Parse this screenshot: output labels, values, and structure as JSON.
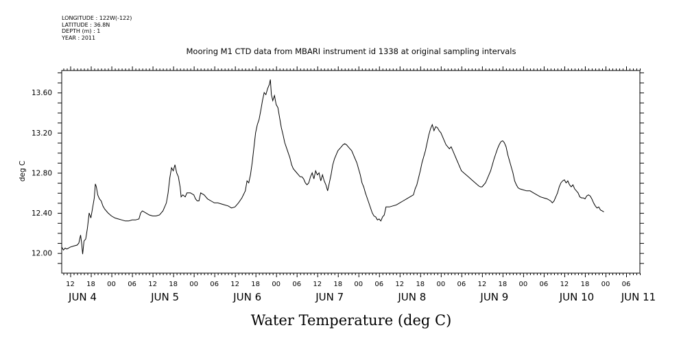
{
  "header": {
    "meta_lines": [
      "LONGITUDE : 122W(-122)",
      "LATITUDE : 36.8N",
      "DEPTH (m) : 1",
      "YEAR : 2011"
    ]
  },
  "chart_data": {
    "type": "line",
    "title": "Mooring M1 CTD data from MBARI instrument id 1338 at original sampling intervals",
    "xlabel": "Water Temperature (deg C)",
    "ylabel": "deg C",
    "ylim": [
      11.8,
      13.82
    ],
    "xlim_hours": [
      9.5,
      178
    ],
    "x_unit": "hours since 00:00 on JUN 4, 2011",
    "yticks": [
      12.0,
      12.4,
      12.8,
      13.2,
      13.6
    ],
    "ytick_labels": [
      "12.00",
      "12.40",
      "12.80",
      "13.20",
      "13.60"
    ],
    "hour_ticks": [
      {
        "h": 12,
        "label": "12"
      },
      {
        "h": 18,
        "label": "18"
      },
      {
        "h": 24,
        "label": "00"
      },
      {
        "h": 30,
        "label": "06"
      },
      {
        "h": 36,
        "label": "12"
      },
      {
        "h": 42,
        "label": "18"
      },
      {
        "h": 48,
        "label": "00"
      },
      {
        "h": 54,
        "label": "06"
      },
      {
        "h": 60,
        "label": "12"
      },
      {
        "h": 66,
        "label": "18"
      },
      {
        "h": 72,
        "label": "00"
      },
      {
        "h": 78,
        "label": "06"
      },
      {
        "h": 84,
        "label": "12"
      },
      {
        "h": 90,
        "label": "18"
      },
      {
        "h": 96,
        "label": "00"
      },
      {
        "h": 102,
        "label": "06"
      },
      {
        "h": 108,
        "label": "12"
      },
      {
        "h": 114,
        "label": "18"
      },
      {
        "h": 120,
        "label": "00"
      },
      {
        "h": 126,
        "label": "06"
      },
      {
        "h": 132,
        "label": "12"
      },
      {
        "h": 138,
        "label": "18"
      },
      {
        "h": 144,
        "label": "00"
      },
      {
        "h": 150,
        "label": "06"
      },
      {
        "h": 156,
        "label": "12"
      },
      {
        "h": 162,
        "label": "18"
      },
      {
        "h": 168,
        "label": "00"
      },
      {
        "h": 174,
        "label": "06"
      }
    ],
    "day_labels": [
      {
        "h": 12,
        "label": "JUN  4"
      },
      {
        "h": 36,
        "label": "JUN  5"
      },
      {
        "h": 60,
        "label": "JUN  6"
      },
      {
        "h": 84,
        "label": "JUN  7"
      },
      {
        "h": 108,
        "label": "JUN  8"
      },
      {
        "h": 132,
        "label": "JUN  9"
      },
      {
        "h": 156,
        "label": "JUN 10"
      },
      {
        "h": 174,
        "label": "JUN 11"
      }
    ],
    "grid": false,
    "series": [
      {
        "color": "#000000",
        "points": [
          [
            9.5,
            12.06
          ],
          [
            10.0,
            12.03
          ],
          [
            10.5,
            12.05
          ],
          [
            11.0,
            12.04
          ],
          [
            12.0,
            12.06
          ],
          [
            13.0,
            12.07
          ],
          [
            14.0,
            12.08
          ],
          [
            14.5,
            12.1
          ],
          [
            15.0,
            12.18
          ],
          [
            15.3,
            12.1
          ],
          [
            15.6,
            11.99
          ],
          [
            16.0,
            12.12
          ],
          [
            16.5,
            12.14
          ],
          [
            17.0,
            12.25
          ],
          [
            17.5,
            12.4
          ],
          [
            18.0,
            12.35
          ],
          [
            18.5,
            12.45
          ],
          [
            19.0,
            12.55
          ],
          [
            19.3,
            12.69
          ],
          [
            19.6,
            12.66
          ],
          [
            20.0,
            12.58
          ],
          [
            20.5,
            12.54
          ],
          [
            21.0,
            12.52
          ],
          [
            21.5,
            12.47
          ],
          [
            22.0,
            12.44
          ],
          [
            23.0,
            12.4
          ],
          [
            24.0,
            12.37
          ],
          [
            25.0,
            12.35
          ],
          [
            26.0,
            12.34
          ],
          [
            27.0,
            12.33
          ],
          [
            28.0,
            12.32
          ],
          [
            29.0,
            12.32
          ],
          [
            30.0,
            12.33
          ],
          [
            31.0,
            12.33
          ],
          [
            32.0,
            12.34
          ],
          [
            32.5,
            12.4
          ],
          [
            33.0,
            12.42
          ],
          [
            34.0,
            12.4
          ],
          [
            35.0,
            12.38
          ],
          [
            36.0,
            12.37
          ],
          [
            37.0,
            12.37
          ],
          [
            38.0,
            12.38
          ],
          [
            39.0,
            12.42
          ],
          [
            40.0,
            12.5
          ],
          [
            40.5,
            12.6
          ],
          [
            41.0,
            12.75
          ],
          [
            41.5,
            12.85
          ],
          [
            42.0,
            12.82
          ],
          [
            42.5,
            12.88
          ],
          [
            43.0,
            12.8
          ],
          [
            43.5,
            12.76
          ],
          [
            44.0,
            12.66
          ],
          [
            44.3,
            12.56
          ],
          [
            44.8,
            12.58
          ],
          [
            45.5,
            12.56
          ],
          [
            46.0,
            12.6
          ],
          [
            47.0,
            12.6
          ],
          [
            48.0,
            12.58
          ],
          [
            48.5,
            12.54
          ],
          [
            49.0,
            12.52
          ],
          [
            49.5,
            12.52
          ],
          [
            50.0,
            12.6
          ],
          [
            51.0,
            12.58
          ],
          [
            52.0,
            12.54
          ],
          [
            53.0,
            12.52
          ],
          [
            54.0,
            12.5
          ],
          [
            55.0,
            12.5
          ],
          [
            56.0,
            12.49
          ],
          [
            57.0,
            12.48
          ],
          [
            58.0,
            12.47
          ],
          [
            59.0,
            12.45
          ],
          [
            60.0,
            12.46
          ],
          [
            61.0,
            12.5
          ],
          [
            62.0,
            12.55
          ],
          [
            63.0,
            12.62
          ],
          [
            63.5,
            12.72
          ],
          [
            64.0,
            12.7
          ],
          [
            64.5,
            12.78
          ],
          [
            65.0,
            12.9
          ],
          [
            65.5,
            13.05
          ],
          [
            66.0,
            13.2
          ],
          [
            66.5,
            13.28
          ],
          [
            67.0,
            13.33
          ],
          [
            67.5,
            13.42
          ],
          [
            68.0,
            13.52
          ],
          [
            68.5,
            13.6
          ],
          [
            69.0,
            13.58
          ],
          [
            69.5,
            13.64
          ],
          [
            70.0,
            13.68
          ],
          [
            70.3,
            13.73
          ],
          [
            70.6,
            13.58
          ],
          [
            71.0,
            13.52
          ],
          [
            71.5,
            13.57
          ],
          [
            72.0,
            13.48
          ],
          [
            72.5,
            13.45
          ],
          [
            73.0,
            13.35
          ],
          [
            73.5,
            13.25
          ],
          [
            74.0,
            13.18
          ],
          [
            74.5,
            13.1
          ],
          [
            75.0,
            13.05
          ],
          [
            75.5,
            13.0
          ],
          [
            76.0,
            12.95
          ],
          [
            76.5,
            12.88
          ],
          [
            77.0,
            12.84
          ],
          [
            77.5,
            12.82
          ],
          [
            78.0,
            12.8
          ],
          [
            78.5,
            12.78
          ],
          [
            79.0,
            12.76
          ],
          [
            79.5,
            12.76
          ],
          [
            80.0,
            12.74
          ],
          [
            80.5,
            12.7
          ],
          [
            81.0,
            12.68
          ],
          [
            81.5,
            12.7
          ],
          [
            82.0,
            12.76
          ],
          [
            82.5,
            12.8
          ],
          [
            83.0,
            12.74
          ],
          [
            83.5,
            12.82
          ],
          [
            84.0,
            12.78
          ],
          [
            84.5,
            12.8
          ],
          [
            85.0,
            12.72
          ],
          [
            85.5,
            12.78
          ],
          [
            86.0,
            12.72
          ],
          [
            86.5,
            12.68
          ],
          [
            87.0,
            12.62
          ],
          [
            87.5,
            12.7
          ],
          [
            88.0,
            12.78
          ],
          [
            88.5,
            12.88
          ],
          [
            89.0,
            12.94
          ],
          [
            89.5,
            12.98
          ],
          [
            90.0,
            13.02
          ],
          [
            90.5,
            13.04
          ],
          [
            91.0,
            13.06
          ],
          [
            91.5,
            13.08
          ],
          [
            92.0,
            13.09
          ],
          [
            92.5,
            13.08
          ],
          [
            93.0,
            13.06
          ],
          [
            93.5,
            13.04
          ],
          [
            94.0,
            13.02
          ],
          [
            94.5,
            12.98
          ],
          [
            95.0,
            12.94
          ],
          [
            95.5,
            12.9
          ],
          [
            96.0,
            12.84
          ],
          [
            96.5,
            12.78
          ],
          [
            97.0,
            12.7
          ],
          [
            97.5,
            12.66
          ],
          [
            98.0,
            12.6
          ],
          [
            98.5,
            12.55
          ],
          [
            99.0,
            12.5
          ],
          [
            99.5,
            12.45
          ],
          [
            100.0,
            12.4
          ],
          [
            100.5,
            12.37
          ],
          [
            101.0,
            12.36
          ],
          [
            101.5,
            12.33
          ],
          [
            102.0,
            12.34
          ],
          [
            102.5,
            12.32
          ],
          [
            103.0,
            12.36
          ],
          [
            103.5,
            12.38
          ],
          [
            104.0,
            12.46
          ],
          [
            105.0,
            12.46
          ],
          [
            106.0,
            12.47
          ],
          [
            107.0,
            12.48
          ],
          [
            108.0,
            12.5
          ],
          [
            109.0,
            12.52
          ],
          [
            110.0,
            12.54
          ],
          [
            111.0,
            12.56
          ],
          [
            112.0,
            12.58
          ],
          [
            112.5,
            12.64
          ],
          [
            113.0,
            12.68
          ],
          [
            113.5,
            12.75
          ],
          [
            114.0,
            12.82
          ],
          [
            114.5,
            12.9
          ],
          [
            115.0,
            12.96
          ],
          [
            115.5,
            13.02
          ],
          [
            116.0,
            13.1
          ],
          [
            116.5,
            13.18
          ],
          [
            117.0,
            13.24
          ],
          [
            117.5,
            13.28
          ],
          [
            118.0,
            13.22
          ],
          [
            118.5,
            13.26
          ],
          [
            119.0,
            13.25
          ],
          [
            119.5,
            13.22
          ],
          [
            120.0,
            13.2
          ],
          [
            120.5,
            13.16
          ],
          [
            121.0,
            13.12
          ],
          [
            121.5,
            13.08
          ],
          [
            122.0,
            13.06
          ],
          [
            122.5,
            13.04
          ],
          [
            123.0,
            13.06
          ],
          [
            123.5,
            13.02
          ],
          [
            124.0,
            12.98
          ],
          [
            124.5,
            12.94
          ],
          [
            125.0,
            12.9
          ],
          [
            125.5,
            12.86
          ],
          [
            126.0,
            12.82
          ],
          [
            127.0,
            12.79
          ],
          [
            128.0,
            12.76
          ],
          [
            129.0,
            12.73
          ],
          [
            130.0,
            12.7
          ],
          [
            131.0,
            12.67
          ],
          [
            131.5,
            12.66
          ],
          [
            132.0,
            12.66
          ],
          [
            132.5,
            12.68
          ],
          [
            133.0,
            12.7
          ],
          [
            133.5,
            12.74
          ],
          [
            134.0,
            12.78
          ],
          [
            134.5,
            12.82
          ],
          [
            135.0,
            12.88
          ],
          [
            135.5,
            12.94
          ],
          [
            136.0,
            12.99
          ],
          [
            136.5,
            13.04
          ],
          [
            137.0,
            13.08
          ],
          [
            137.5,
            13.11
          ],
          [
            138.0,
            13.12
          ],
          [
            138.5,
            13.1
          ],
          [
            139.0,
            13.06
          ],
          [
            139.5,
            12.98
          ],
          [
            140.0,
            12.92
          ],
          [
            140.5,
            12.86
          ],
          [
            141.0,
            12.8
          ],
          [
            141.5,
            12.72
          ],
          [
            142.0,
            12.68
          ],
          [
            142.5,
            12.65
          ],
          [
            143.0,
            12.64
          ],
          [
            144.0,
            12.63
          ],
          [
            145.0,
            12.62
          ],
          [
            146.0,
            12.62
          ],
          [
            147.0,
            12.6
          ],
          [
            148.0,
            12.58
          ],
          [
            149.0,
            12.56
          ],
          [
            150.0,
            12.55
          ],
          [
            151.0,
            12.54
          ],
          [
            152.0,
            12.52
          ],
          [
            152.5,
            12.5
          ],
          [
            153.0,
            12.52
          ],
          [
            153.5,
            12.56
          ],
          [
            154.0,
            12.6
          ],
          [
            154.5,
            12.66
          ],
          [
            155.0,
            12.7
          ],
          [
            155.5,
            12.72
          ],
          [
            156.0,
            12.73
          ],
          [
            156.5,
            12.7
          ],
          [
            157.0,
            12.72
          ],
          [
            157.5,
            12.68
          ],
          [
            158.0,
            12.66
          ],
          [
            158.5,
            12.68
          ],
          [
            159.0,
            12.64
          ],
          [
            159.5,
            12.62
          ],
          [
            160.0,
            12.6
          ],
          [
            160.5,
            12.56
          ],
          [
            161.0,
            12.55
          ],
          [
            161.5,
            12.55
          ],
          [
            162.0,
            12.54
          ],
          [
            162.5,
            12.57
          ],
          [
            163.0,
            12.58
          ],
          [
            163.5,
            12.57
          ],
          [
            164.0,
            12.54
          ],
          [
            164.5,
            12.5
          ],
          [
            165.0,
            12.47
          ],
          [
            165.5,
            12.45
          ],
          [
            166.0,
            12.46
          ],
          [
            166.5,
            12.43
          ],
          [
            167.0,
            12.42
          ],
          [
            167.5,
            12.41
          ]
        ]
      }
    ]
  }
}
